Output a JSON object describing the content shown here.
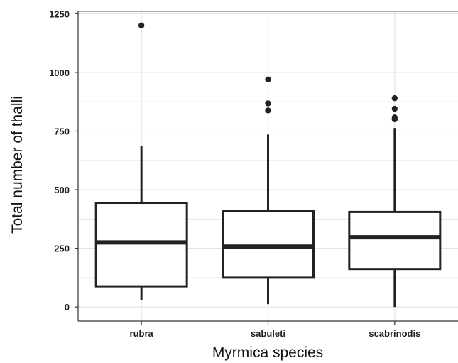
{
  "chart_data": {
    "type": "boxplot",
    "title": "",
    "xlabel": "Myrmica species",
    "ylabel": "Total number of thalli",
    "ylim": [
      -60,
      1260
    ],
    "yticks": [
      0,
      250,
      500,
      750,
      1000,
      1250
    ],
    "ytick_labels": [
      "0",
      "250",
      "500",
      "750",
      "1000",
      "1250"
    ],
    "grid": true,
    "categories": [
      "rubra",
      "sabuleti",
      "scabrinodis"
    ],
    "boxes": [
      {
        "category": "rubra",
        "whisker_low": 28,
        "q1": 88,
        "median": 275,
        "q3": 444,
        "whisker_high": 685,
        "outliers": [
          1200
        ]
      },
      {
        "category": "sabuleti",
        "whisker_low": 12,
        "q1": 125,
        "median": 257,
        "q3": 410,
        "whisker_high": 735,
        "outliers": [
          838,
          868,
          970
        ]
      },
      {
        "category": "scabrinodis",
        "whisker_low": 0,
        "q1": 162,
        "median": 297,
        "q3": 405,
        "whisker_high": 763,
        "outliers": [
          800,
          808,
          845,
          890
        ]
      }
    ],
    "colors": {
      "box_fill": "#ffffff",
      "box_stroke": "#222222",
      "grid": "#e3e3e3"
    }
  }
}
